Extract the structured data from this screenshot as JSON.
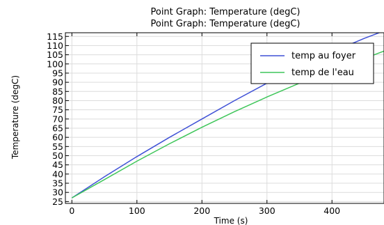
{
  "chart_data": {
    "type": "line",
    "title": "Point Graph: Temperature (degC)",
    "subtitle": "Point Graph: Temperature (degC)",
    "xlabel": "Time (s)",
    "ylabel": "Temperature (degC)",
    "xlim": [
      -10,
      480
    ],
    "ylim": [
      24,
      117
    ],
    "xticks": [
      0,
      100,
      200,
      300,
      400
    ],
    "yticks": [
      25,
      30,
      35,
      40,
      45,
      50,
      55,
      60,
      65,
      70,
      75,
      80,
      85,
      90,
      95,
      100,
      105,
      110,
      115
    ],
    "grid": true,
    "legend_position": "top-right",
    "series": [
      {
        "name": "temp au foyer",
        "color": "#3f51d6",
        "x": [
          0,
          50,
          100,
          150,
          200,
          250,
          300,
          350,
          400,
          450,
          480
        ],
        "y": [
          27,
          38.5,
          49.5,
          60,
          70,
          80,
          89.5,
          98.5,
          106.5,
          114,
          118
        ]
      },
      {
        "name": "temp de l'eau",
        "color": "#3fc65a",
        "x": [
          0,
          50,
          100,
          150,
          200,
          250,
          300,
          350,
          400,
          450,
          480
        ],
        "y": [
          27,
          37,
          47,
          56.5,
          65.5,
          74,
          82,
          89.5,
          96.5,
          103,
          107
        ]
      }
    ]
  }
}
